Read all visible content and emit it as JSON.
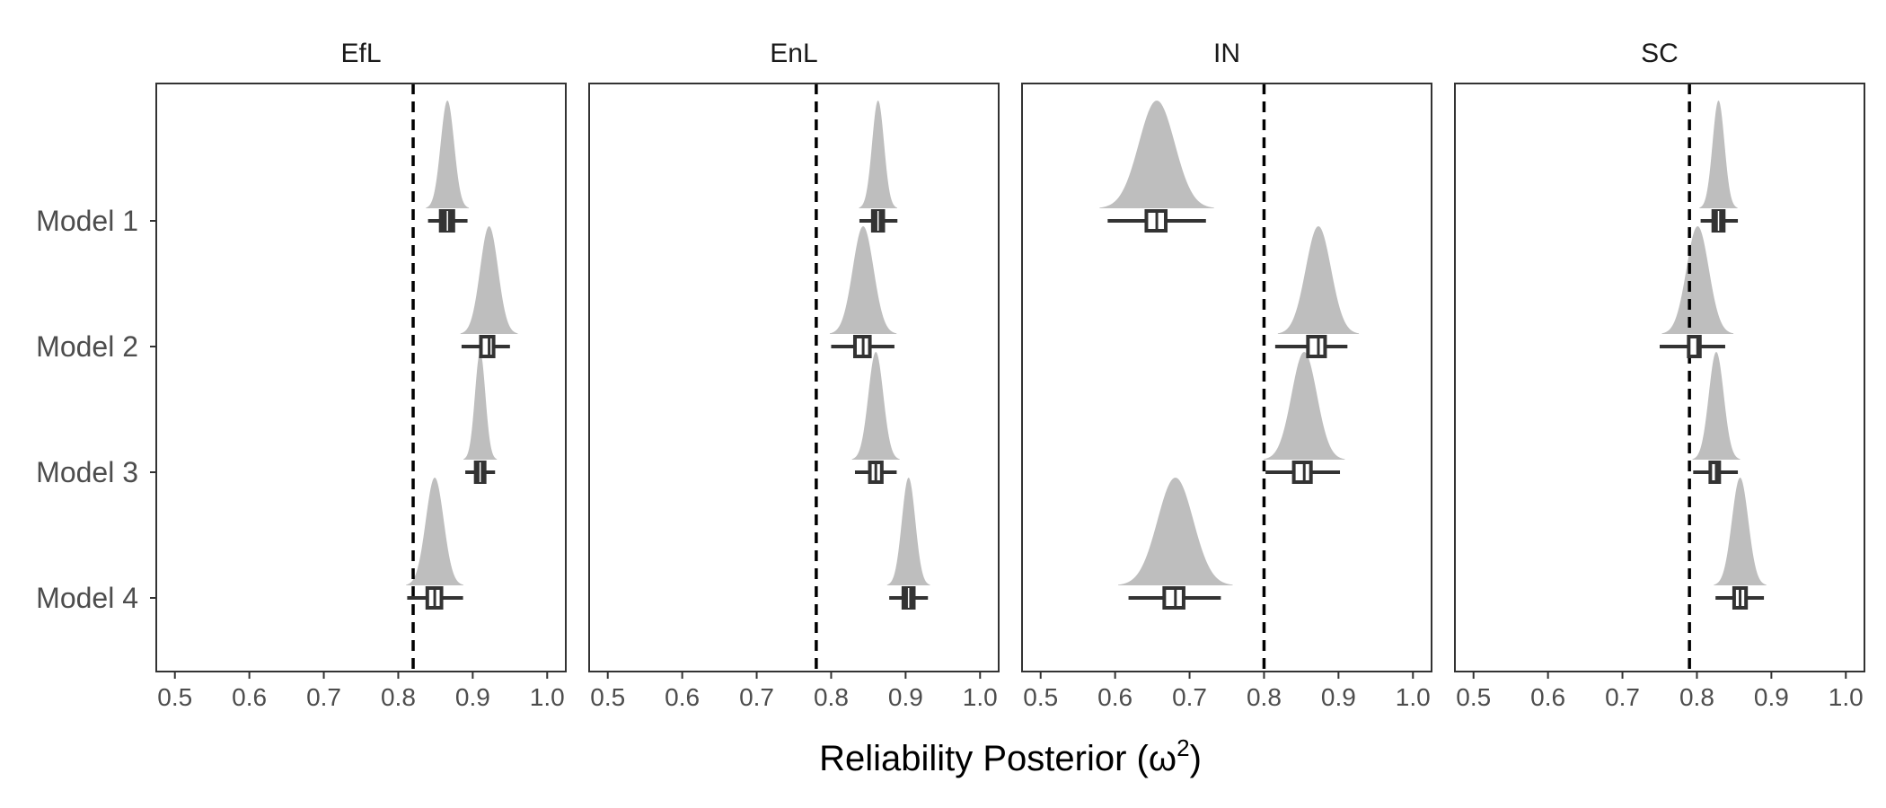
{
  "chart_data": {
    "type": "faceted-interval",
    "xlabel": {
      "text": "Reliability Posterior (ω",
      "sup": "2",
      "close": ")"
    },
    "xlim": [
      0.475,
      1.025
    ],
    "xticks": [
      0.5,
      0.6,
      0.7,
      0.8,
      0.9,
      1.0
    ],
    "xtick_labels": [
      "0.5",
      "0.6",
      "0.7",
      "0.8",
      "0.9",
      "1.0"
    ],
    "categories": [
      "Model 1",
      "Model 2",
      "Model 3",
      "Model 4"
    ],
    "grid": false,
    "colors": {
      "density": "#bebebe",
      "interval": "#333333",
      "refline": "#000000",
      "frame": "#333333"
    },
    "facets": [
      {
        "name": "EfL",
        "reference": 0.82,
        "models": [
          {
            "model": "Model 1",
            "center": 0.866,
            "sd": 0.009,
            "lo": 0.84,
            "hi": 0.893,
            "box_lo": 0.857,
            "box_hi": 0.874,
            "filled": true
          },
          {
            "model": "Model 2",
            "center": 0.922,
            "sd": 0.012,
            "lo": 0.885,
            "hi": 0.95,
            "box_lo": 0.911,
            "box_hi": 0.928,
            "filled": false
          },
          {
            "model": "Model 3",
            "center": 0.91,
            "sd": 0.007,
            "lo": 0.89,
            "hi": 0.93,
            "box_lo": 0.904,
            "box_hi": 0.916,
            "filled": true
          },
          {
            "model": "Model 4",
            "center": 0.849,
            "sd": 0.012,
            "lo": 0.812,
            "hi": 0.887,
            "box_lo": 0.839,
            "box_hi": 0.858,
            "filled": false
          }
        ]
      },
      {
        "name": "EnL",
        "reference": 0.78,
        "models": [
          {
            "model": "Model 1",
            "center": 0.863,
            "sd": 0.008,
            "lo": 0.838,
            "hi": 0.889,
            "box_lo": 0.856,
            "box_hi": 0.87,
            "filled": true
          },
          {
            "model": "Model 2",
            "center": 0.843,
            "sd": 0.014,
            "lo": 0.8,
            "hi": 0.885,
            "box_lo": 0.832,
            "box_hi": 0.852,
            "filled": false
          },
          {
            "model": "Model 3",
            "center": 0.86,
            "sd": 0.01,
            "lo": 0.832,
            "hi": 0.888,
            "box_lo": 0.852,
            "box_hi": 0.868,
            "filled": false
          },
          {
            "model": "Model 4",
            "center": 0.904,
            "sd": 0.009,
            "lo": 0.878,
            "hi": 0.93,
            "box_lo": 0.897,
            "box_hi": 0.911,
            "filled": true
          }
        ]
      },
      {
        "name": "IN",
        "reference": 0.8,
        "models": [
          {
            "model": "Model 1",
            "center": 0.656,
            "sd": 0.024,
            "lo": 0.59,
            "hi": 0.722,
            "box_lo": 0.642,
            "box_hi": 0.668,
            "filled": false
          },
          {
            "model": "Model 2",
            "center": 0.873,
            "sd": 0.017,
            "lo": 0.815,
            "hi": 0.912,
            "box_lo": 0.859,
            "box_hi": 0.882,
            "filled": false
          },
          {
            "model": "Model 3",
            "center": 0.854,
            "sd": 0.017,
            "lo": 0.802,
            "hi": 0.902,
            "box_lo": 0.84,
            "box_hi": 0.863,
            "filled": false
          },
          {
            "model": "Model 4",
            "center": 0.681,
            "sd": 0.024,
            "lo": 0.618,
            "hi": 0.742,
            "box_lo": 0.666,
            "box_hi": 0.692,
            "filled": false
          }
        ]
      },
      {
        "name": "SC",
        "reference": 0.79,
        "models": [
          {
            "model": "Model 1",
            "center": 0.829,
            "sd": 0.008,
            "lo": 0.805,
            "hi": 0.855,
            "box_lo": 0.822,
            "box_hi": 0.836,
            "filled": true
          },
          {
            "model": "Model 2",
            "center": 0.801,
            "sd": 0.015,
            "lo": 0.75,
            "hi": 0.838,
            "box_lo": 0.789,
            "box_hi": 0.804,
            "filled": false
          },
          {
            "model": "Model 3",
            "center": 0.826,
            "sd": 0.01,
            "lo": 0.795,
            "hi": 0.855,
            "box_lo": 0.818,
            "box_hi": 0.83,
            "filled": false
          },
          {
            "model": "Model 4",
            "center": 0.858,
            "sd": 0.011,
            "lo": 0.825,
            "hi": 0.89,
            "box_lo": 0.85,
            "box_hi": 0.866,
            "filled": false
          }
        ]
      }
    ]
  }
}
